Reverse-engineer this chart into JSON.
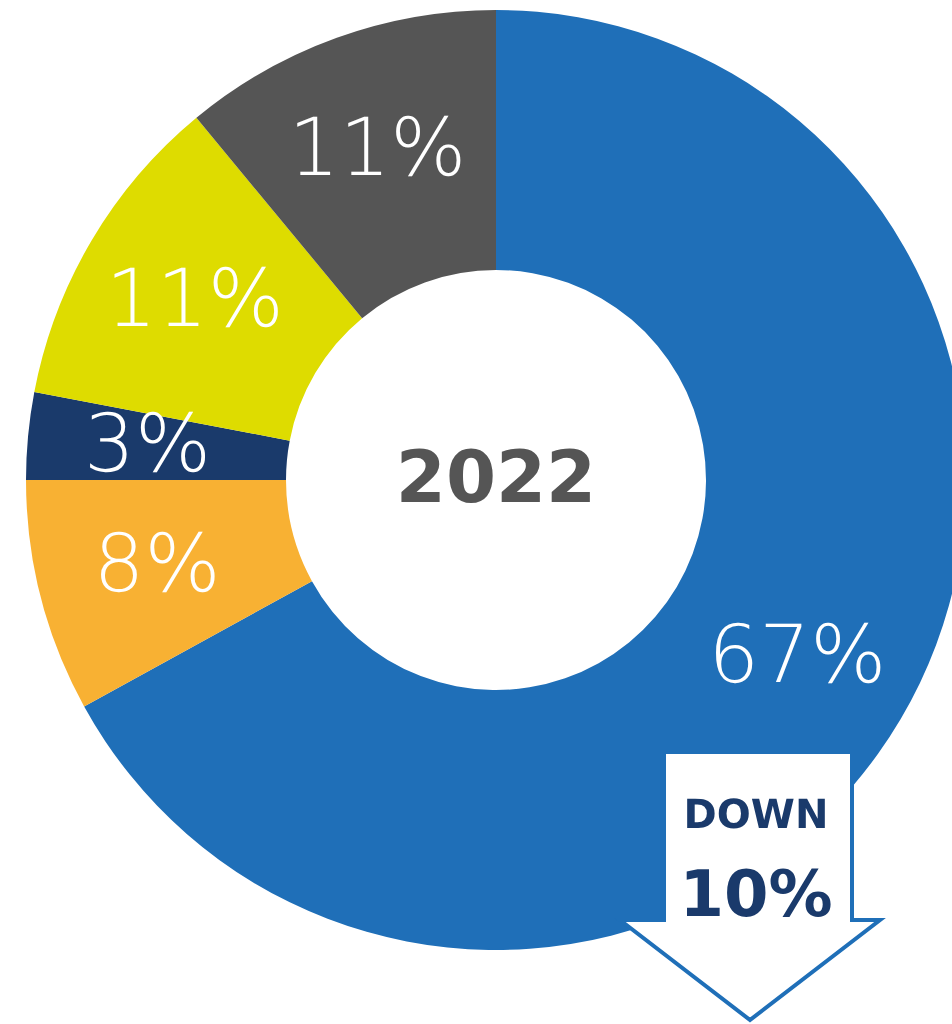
{
  "chart_data": {
    "type": "donut",
    "title": "2022",
    "categories": [
      null,
      null,
      null,
      null,
      null
    ],
    "values": [
      67,
      8,
      3,
      11,
      11
    ],
    "value_labels": [
      "67%",
      "8%",
      "3%",
      "11%",
      "11%"
    ],
    "colors": [
      "#1f6fb8",
      "#f8b133",
      "#1a3a6b",
      "#dedc00",
      "#555555"
    ],
    "annotations": [
      "DOWN 10%"
    ]
  }
}
